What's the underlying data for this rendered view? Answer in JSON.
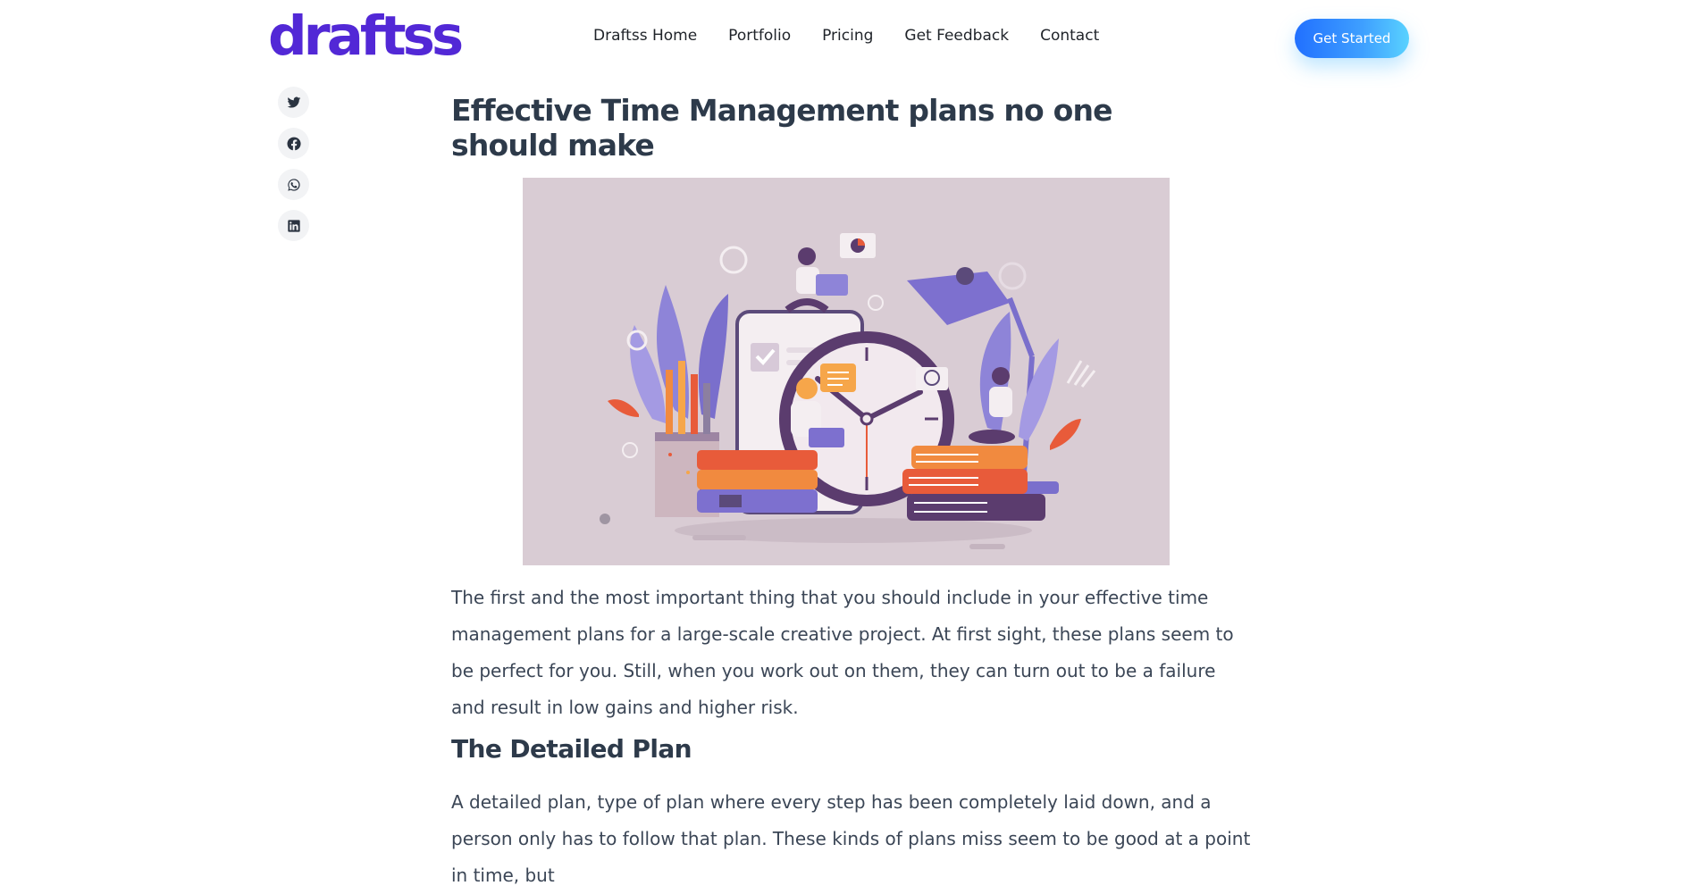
{
  "header": {
    "logo": "draftss",
    "nav": [
      "Draftss Home",
      "Portfolio",
      "Pricing",
      "Get Feedback",
      "Contact"
    ],
    "cta_label": "Get Started"
  },
  "share": {
    "icons": [
      "twitter-icon",
      "facebook-icon",
      "whatsapp-icon",
      "linkedin-icon"
    ]
  },
  "article": {
    "title": "Effective Time Management plans no one should make",
    "paragraph1": "The first and the most important thing that you should include in your effective time management plans for a large-scale creative project. At first sight, these plans seem to be perfect for you. Still, when you work out on them, they can turn out to be a failure and result in low gains and higher risk.",
    "heading2": "The Detailed Plan",
    "paragraph2": "A detailed plan, type of plan where every step has been completely laid down, and a person only has to follow that plan. These kinds of plans miss seem to be good at a point in time, but"
  },
  "colors": {
    "brand": "#5228d6",
    "cta_start": "#2170ff",
    "cta_end": "#59d2ff",
    "hero_bg": "#d9ccd4",
    "text": "#3b4656"
  }
}
